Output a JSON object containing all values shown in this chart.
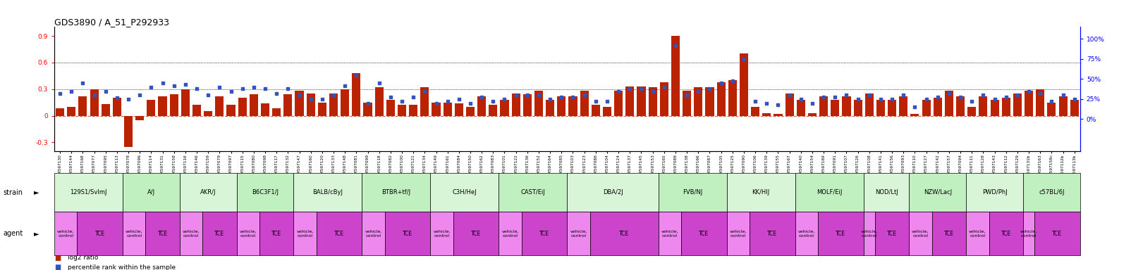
{
  "title": "GDS3890 / A_51_P292933",
  "gsm_ids": [
    "GSM597130",
    "GSM597144",
    "GSM597168",
    "GSM597077",
    "GSM597095",
    "GSM597113",
    "GSM597078",
    "GSM597096",
    "GSM597114",
    "GSM597131",
    "GSM597158",
    "GSM597116",
    "GSM597146",
    "GSM597159",
    "GSM597079",
    "GSM597097",
    "GSM597115",
    "GSM597080",
    "GSM597098",
    "GSM597117",
    "GSM597132",
    "GSM597147",
    "GSM597160",
    "GSM597120",
    "GSM597133",
    "GSM597148",
    "GSM597081",
    "GSM597099",
    "GSM597118",
    "GSM597082",
    "GSM597100",
    "GSM597121",
    "GSM597134",
    "GSM597149",
    "GSM597161",
    "GSM597084",
    "GSM597150",
    "GSM597162",
    "GSM597083",
    "GSM597101",
    "GSM597122",
    "GSM597136",
    "GSM597152",
    "GSM597164",
    "GSM597085",
    "GSM597103",
    "GSM597123",
    "GSM597086",
    "GSM597104",
    "GSM597124",
    "GSM597137",
    "GSM597145",
    "GSM597153",
    "GSM597165",
    "GSM597088",
    "GSM597138",
    "GSM597166",
    "GSM597087",
    "GSM597105",
    "GSM597125",
    "GSM597090",
    "GSM597106",
    "GSM597139",
    "GSM597155",
    "GSM597167",
    "GSM597140",
    "GSM597154",
    "GSM597169",
    "GSM597091",
    "GSM597107",
    "GSM597126",
    "GSM597108",
    "GSM597141",
    "GSM597156",
    "GSM597093",
    "GSM597110",
    "GSM597127",
    "GSM597142",
    "GSM597157",
    "GSM597094",
    "GSM597111",
    "GSM597128",
    "GSM597143",
    "GSM597112",
    "GSM597129",
    "GSM597131b",
    "GSM597163",
    "GSM597158c",
    "GSM597112b",
    "GSM597113b"
  ],
  "log2": [
    0.08,
    0.1,
    0.22,
    0.3,
    0.13,
    0.2,
    -0.35,
    -0.05,
    0.18,
    0.22,
    0.24,
    0.3,
    0.12,
    0.05,
    0.22,
    0.12,
    0.2,
    0.24,
    0.14,
    0.08,
    0.24,
    0.28,
    0.25,
    0.15,
    0.25,
    0.3,
    0.48,
    0.15,
    0.32,
    0.18,
    0.12,
    0.12,
    0.32,
    0.15,
    0.15,
    0.14,
    0.1,
    0.22,
    0.12,
    0.18,
    0.25,
    0.24,
    0.28,
    0.18,
    0.22,
    0.22,
    0.28,
    0.12,
    0.1,
    0.28,
    0.33,
    0.33,
    0.32,
    0.38,
    0.9,
    0.28,
    0.32,
    0.32,
    0.38,
    0.4,
    0.7,
    0.1,
    0.03,
    0.02,
    0.25,
    0.18,
    0.03,
    0.22,
    0.18,
    0.22,
    0.18,
    0.25,
    0.18,
    0.18,
    0.22,
    0.02,
    0.18,
    0.2,
    0.28,
    0.22,
    0.1,
    0.22,
    0.18,
    0.2,
    0.25,
    0.28,
    0.3,
    0.15,
    0.22,
    0.18
  ],
  "percentile": [
    32,
    35,
    45,
    30,
    35,
    27,
    25,
    30,
    40,
    45,
    42,
    43,
    38,
    30,
    40,
    35,
    38,
    40,
    38,
    32,
    38,
    30,
    25,
    25,
    30,
    42,
    55,
    20,
    45,
    28,
    22,
    28,
    35,
    20,
    22,
    25,
    20,
    28,
    22,
    25,
    30,
    30,
    30,
    25,
    28,
    28,
    30,
    22,
    22,
    35,
    38,
    38,
    35,
    40,
    92,
    30,
    35,
    38,
    45,
    48,
    75,
    22,
    20,
    18,
    30,
    25,
    20,
    28,
    28,
    30,
    25,
    30,
    25,
    25,
    30,
    15,
    25,
    28,
    32,
    28,
    22,
    30,
    25,
    28,
    30,
    35,
    32,
    22,
    30,
    25
  ],
  "strains": [
    {
      "name": "129S1/SvImJ",
      "n_vehicle": 2,
      "n_tce": 4,
      "color": "#d8f5d8"
    },
    {
      "name": "A/J",
      "n_vehicle": 2,
      "n_tce": 3,
      "color": "#c0f0c0"
    },
    {
      "name": "AKR/J",
      "n_vehicle": 2,
      "n_tce": 3,
      "color": "#d8f5d8"
    },
    {
      "name": "B6C3F1/J",
      "n_vehicle": 2,
      "n_tce": 3,
      "color": "#c0f0c0"
    },
    {
      "name": "BALB/cByJ",
      "n_vehicle": 2,
      "n_tce": 4,
      "color": "#d8f5d8"
    },
    {
      "name": "BTBR+tf/J",
      "n_vehicle": 2,
      "n_tce": 4,
      "color": "#c0f0c0"
    },
    {
      "name": "C3H/HeJ",
      "n_vehicle": 2,
      "n_tce": 4,
      "color": "#d8f5d8"
    },
    {
      "name": "CAST/EiJ",
      "n_vehicle": 2,
      "n_tce": 4,
      "color": "#c0f0c0"
    },
    {
      "name": "DBA/2J",
      "n_vehicle": 2,
      "n_tce": 6,
      "color": "#d8f5d8"
    },
    {
      "name": "FVB/NJ",
      "n_vehicle": 2,
      "n_tce": 4,
      "color": "#c0f0c0"
    },
    {
      "name": "KK/HIJ",
      "n_vehicle": 2,
      "n_tce": 4,
      "color": "#d8f5d8"
    },
    {
      "name": "MOLF/EiJ",
      "n_vehicle": 2,
      "n_tce": 4,
      "color": "#c0f0c0"
    },
    {
      "name": "NOD/LtJ",
      "n_vehicle": 1,
      "n_tce": 3,
      "color": "#d8f5d8"
    },
    {
      "name": "NZW/LacJ",
      "n_vehicle": 2,
      "n_tce": 3,
      "color": "#c0f0c0"
    },
    {
      "name": "PWD/PhJ",
      "n_vehicle": 2,
      "n_tce": 3,
      "color": "#d8f5d8"
    },
    {
      "name": "c57BL/6J",
      "n_vehicle": 1,
      "n_tce": 4,
      "color": "#c0f0c0"
    }
  ],
  "vc_color": "#ee88ee",
  "tce_color": "#cc44cc",
  "bar_color": "#bb2200",
  "dot_color": "#3355bb",
  "ylim": [
    -0.4,
    1.0
  ],
  "y_left_ticks": [
    -0.3,
    0.0,
    0.3,
    0.6,
    0.9
  ],
  "y_right_ticks": [
    0,
    25,
    50,
    75,
    100
  ],
  "hlines": [
    0.3,
    0.6
  ]
}
